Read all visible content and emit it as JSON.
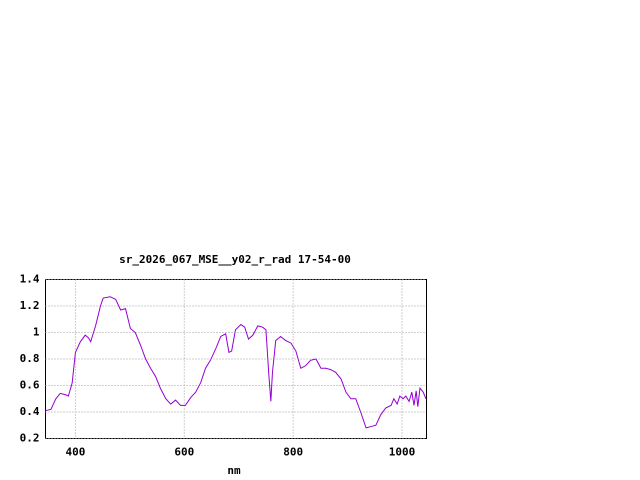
{
  "chart_data": {
    "type": "line",
    "title": "sr_2026_067_MSE__y02_r_rad 17-54-00",
    "x_label": "nm",
    "series": [
      {
        "color": "#9400d3",
        "x": [
          345,
          355,
          364,
          372,
          382,
          387,
          394,
          400,
          409,
          418,
          424,
          428,
          437,
          446,
          451,
          464,
          474,
          483,
          492,
          501,
          510,
          520,
          529,
          538,
          547,
          556,
          566,
          575,
          584,
          593,
          602,
          612,
          621,
          630,
          639,
          648,
          658,
          667,
          676,
          682,
          687,
          694,
          704,
          711,
          718,
          726,
          735,
          744,
          750,
          755,
          759,
          762,
          768,
          777,
          786,
          796,
          805,
          814,
          823,
          832,
          842,
          851,
          860,
          869,
          878,
          888,
          897,
          906,
          915,
          924,
          934,
          943,
          952,
          961,
          970,
          980,
          985,
          991,
          996,
          1002,
          1007,
          1013,
          1018,
          1022,
          1026,
          1029,
          1033,
          1039,
          1044
        ],
        "values": [
          0.41,
          0.42,
          0.5,
          0.54,
          0.53,
          0.52,
          0.62,
          0.85,
          0.93,
          0.98,
          0.96,
          0.93,
          1.05,
          1.2,
          1.26,
          1.27,
          1.25,
          1.17,
          1.18,
          1.03,
          1.0,
          0.9,
          0.8,
          0.73,
          0.67,
          0.58,
          0.5,
          0.46,
          0.49,
          0.45,
          0.45,
          0.51,
          0.55,
          0.62,
          0.73,
          0.79,
          0.88,
          0.97,
          0.99,
          0.85,
          0.86,
          1.02,
          1.06,
          1.04,
          0.95,
          0.98,
          1.05,
          1.04,
          1.02,
          0.7,
          0.48,
          0.7,
          0.94,
          0.97,
          0.94,
          0.92,
          0.86,
          0.73,
          0.75,
          0.79,
          0.8,
          0.73,
          0.73,
          0.72,
          0.7,
          0.65,
          0.55,
          0.5,
          0.5,
          0.4,
          0.28,
          0.29,
          0.3,
          0.38,
          0.43,
          0.45,
          0.5,
          0.46,
          0.52,
          0.5,
          0.52,
          0.48,
          0.55,
          0.45,
          0.56,
          0.44,
          0.58,
          0.55,
          0.5
        ]
      }
    ],
    "xlim": [
      345,
      1045
    ],
    "xticks": [
      400,
      600,
      800,
      1000
    ],
    "ylim": [
      0.2,
      1.4
    ],
    "yticks": [
      0.2,
      0.4,
      0.6,
      0.8,
      1,
      1.2,
      1.4
    ],
    "grid": true
  }
}
